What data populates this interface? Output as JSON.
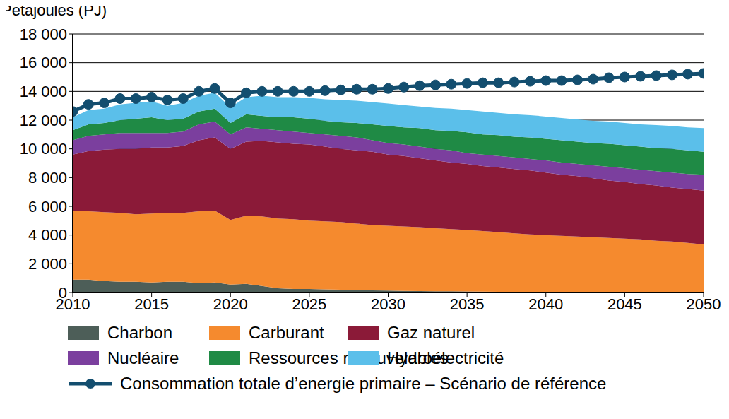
{
  "chart_data": {
    "type": "area",
    "stacked": true,
    "grid": true,
    "y_label": "Pétajoules (PJ)",
    "x": [
      2010,
      2011,
      2012,
      2013,
      2014,
      2015,
      2016,
      2017,
      2018,
      2019,
      2020,
      2021,
      2022,
      2023,
      2024,
      2025,
      2026,
      2027,
      2028,
      2029,
      2030,
      2031,
      2032,
      2033,
      2034,
      2035,
      2036,
      2037,
      2038,
      2039,
      2040,
      2041,
      2042,
      2043,
      2044,
      2045,
      2046,
      2047,
      2048,
      2049,
      2050
    ],
    "xlim": [
      2010,
      2050
    ],
    "xticks": [
      2010,
      2015,
      2020,
      2025,
      2030,
      2035,
      2040,
      2045,
      2050
    ],
    "ylim": [
      0,
      18000
    ],
    "yticks": [
      0,
      {
        "value": 2000,
        "label": "2 000"
      },
      {
        "value": 4000,
        "label": "4 000"
      },
      {
        "value": 6000,
        "label": "6 000"
      },
      {
        "value": 8000,
        "label": "8 000"
      },
      {
        "value": 10000,
        "label": "10 000"
      },
      {
        "value": 12000,
        "label": "12 000"
      },
      {
        "value": 14000,
        "label": "14 000"
      },
      {
        "value": 16000,
        "label": "16 000"
      },
      {
        "value": 18000,
        "label": "18 000"
      }
    ],
    "series": [
      {
        "name": "Charbon",
        "type": "area",
        "color": "#4d5e58",
        "values": [
          900,
          900,
          800,
          750,
          750,
          700,
          750,
          750,
          650,
          700,
          550,
          600,
          450,
          300,
          250,
          250,
          220,
          200,
          180,
          150,
          130,
          110,
          100,
          90,
          80,
          70,
          60,
          55,
          50,
          45,
          40,
          35,
          32,
          30,
          28,
          26,
          24,
          22,
          20,
          20,
          20
        ]
      },
      {
        "name": "Carburant",
        "type": "area",
        "color": "#f58a2e",
        "values": [
          4800,
          4750,
          4800,
          4800,
          4700,
          4800,
          4800,
          4800,
          5000,
          5000,
          4500,
          4750,
          4850,
          4850,
          4850,
          4750,
          4730,
          4700,
          4620,
          4550,
          4520,
          4490,
          4450,
          4390,
          4340,
          4280,
          4220,
          4145,
          4070,
          4005,
          3960,
          3915,
          3868,
          3820,
          3772,
          3724,
          3676,
          3578,
          3530,
          3430,
          3330
        ]
      },
      {
        "name": "Gaz naturel",
        "type": "area",
        "color": "#8b1a38",
        "values": [
          3900,
          4200,
          4350,
          4450,
          4550,
          4600,
          4550,
          4650,
          4950,
          5100,
          4950,
          5150,
          5250,
          5300,
          5250,
          5300,
          5200,
          5100,
          5100,
          5100,
          4950,
          4900,
          4800,
          4720,
          4630,
          4600,
          4520,
          4500,
          4480,
          4450,
          4350,
          4250,
          4200,
          4100,
          4000,
          3950,
          3850,
          3850,
          3750,
          3750,
          3750
        ]
      },
      {
        "name": "Nucléaire",
        "type": "area",
        "color": "#7b3f9e",
        "values": [
          1000,
          1050,
          1050,
          1100,
          1100,
          1000,
          1000,
          1000,
          1100,
          1100,
          1000,
          1000,
          850,
          850,
          850,
          800,
          850,
          900,
          900,
          800,
          800,
          800,
          800,
          800,
          850,
          750,
          800,
          800,
          800,
          800,
          850,
          850,
          850,
          900,
          950,
          950,
          1000,
          1000,
          1050,
          1050,
          1100
        ]
      },
      {
        "name": "Ressources renouvelables",
        "type": "area",
        "color": "#1f8a45",
        "values": [
          700,
          800,
          800,
          900,
          1000,
          1100,
          900,
          900,
          900,
          900,
          800,
          900,
          900,
          900,
          1000,
          1000,
          950,
          950,
          1000,
          1100,
          1200,
          1200,
          1300,
          1300,
          1350,
          1450,
          1400,
          1450,
          1450,
          1500,
          1500,
          1550,
          1550,
          1550,
          1600,
          1600,
          1600,
          1600,
          1650,
          1650,
          1600
        ]
      },
      {
        "name": "Hydroélectricité",
        "type": "area",
        "color": "#5bbfea",
        "values": [
          900,
          1000,
          1000,
          1100,
          1100,
          1100,
          1000,
          1100,
          1100,
          1100,
          1100,
          1200,
          1400,
          1400,
          1400,
          1450,
          1500,
          1550,
          1550,
          1550,
          1550,
          1550,
          1500,
          1550,
          1550,
          1550,
          1600,
          1550,
          1550,
          1550,
          1550,
          1550,
          1550,
          1550,
          1550,
          1550,
          1550,
          1600,
          1600,
          1600,
          1650
        ]
      },
      {
        "name": "Consommation totale d’energie primaire – Scénario de référence",
        "type": "line",
        "color": "#134e6f",
        "marker": "circle",
        "line_style": "solid",
        "values": [
          12600,
          13100,
          13200,
          13500,
          13500,
          13600,
          13400,
          13500,
          14000,
          14200,
          13200,
          13900,
          14000,
          14000,
          14000,
          14000,
          14050,
          14100,
          14150,
          14150,
          14200,
          14300,
          14400,
          14450,
          14500,
          14550,
          14600,
          14600,
          14650,
          14700,
          14750,
          14750,
          14800,
          14850,
          14950,
          15000,
          15050,
          15100,
          15150,
          15200,
          15250
        ]
      }
    ]
  }
}
